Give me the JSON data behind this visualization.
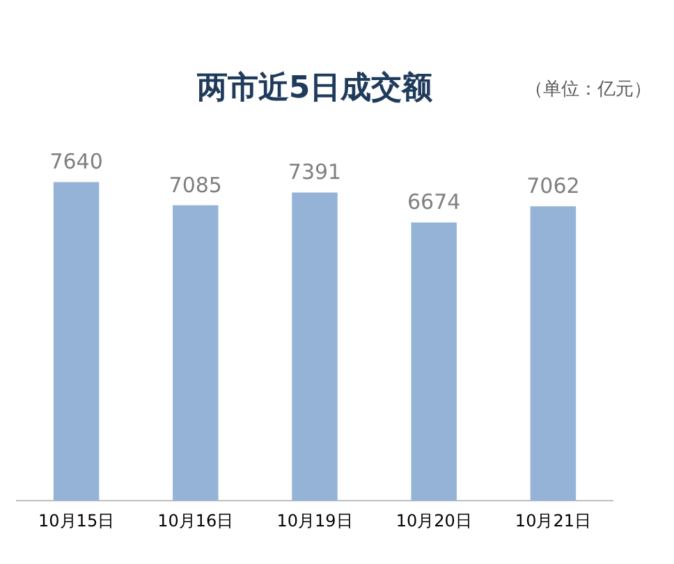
{
  "chart_data": {
    "type": "bar",
    "title": "两市近5日成交额",
    "annotations": [
      "（单位：亿元）"
    ],
    "categories": [
      "10月15日",
      "10月16日",
      "10月19日",
      "10月20日",
      "10月21日"
    ],
    "values": [
      7640,
      7085,
      7391,
      6674,
      7062
    ],
    "color": "#95b3d7",
    "data_labels": true,
    "grid": false,
    "legend": false
  }
}
